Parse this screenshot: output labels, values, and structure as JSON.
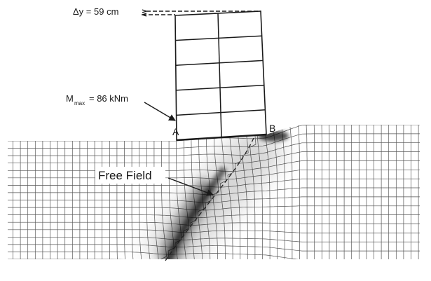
{
  "annotations": {
    "displacement": "Δy = 59 cm",
    "moment_symbol": "M",
    "moment_subscript": "max",
    "moment_value": "= 86 kNm",
    "point_a": "A",
    "point_b": "B",
    "free_field": "Free Field"
  },
  "colors": {
    "line": "#1a1a1a",
    "mesh": "#555555",
    "shear_band": "#000000"
  }
}
